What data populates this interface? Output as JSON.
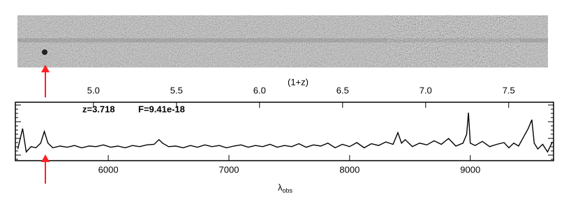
{
  "chart_data": {
    "type": "line",
    "x_label": "λ",
    "x_label_sub": "obs",
    "x2_label": "(1+z)",
    "annotations": [
      "z=3.718",
      "F=9.41e-18"
    ],
    "x": [
      5250,
      5290,
      5320,
      5360,
      5400,
      5440,
      5470,
      5500,
      5540,
      5600,
      5660,
      5720,
      5780,
      5840,
      5900,
      5960,
      6020,
      6080,
      6140,
      6200,
      6260,
      6320,
      6380,
      6420,
      6450,
      6500,
      6560,
      6620,
      6680,
      6740,
      6800,
      6860,
      6920,
      6980,
      7040,
      7100,
      7160,
      7220,
      7280,
      7340,
      7400,
      7460,
      7520,
      7580,
      7640,
      7700,
      7760,
      7820,
      7880,
      7940,
      8000,
      8060,
      8120,
      8180,
      8240,
      8300,
      8360,
      8400,
      8430,
      8460,
      8520,
      8580,
      8640,
      8700,
      8760,
      8820,
      8880,
      8940,
      8970,
      8985,
      9000,
      9040,
      9100,
      9160,
      9220,
      9280,
      9320,
      9360,
      9400,
      9440,
      9480,
      9510,
      9530,
      9560,
      9600,
      9640,
      9680
    ],
    "series": [
      {
        "color": "#000000",
        "values": [
          0.2,
          0.55,
          0.15,
          0.24,
          0.22,
          0.3,
          0.5,
          0.3,
          0.22,
          0.25,
          0.23,
          0.26,
          0.22,
          0.25,
          0.24,
          0.27,
          0.23,
          0.25,
          0.22,
          0.26,
          0.24,
          0.27,
          0.28,
          0.36,
          0.3,
          0.24,
          0.25,
          0.22,
          0.26,
          0.23,
          0.27,
          0.24,
          0.26,
          0.22,
          0.25,
          0.27,
          0.23,
          0.26,
          0.24,
          0.28,
          0.23,
          0.26,
          0.24,
          0.29,
          0.23,
          0.27,
          0.25,
          0.3,
          0.22,
          0.28,
          0.24,
          0.31,
          0.22,
          0.29,
          0.26,
          0.32,
          0.28,
          0.48,
          0.3,
          0.36,
          0.24,
          0.3,
          0.27,
          0.34,
          0.28,
          0.38,
          0.25,
          0.3,
          0.45,
          0.82,
          0.3,
          0.26,
          0.33,
          0.24,
          0.28,
          0.31,
          0.22,
          0.3,
          0.25,
          0.4,
          0.55,
          0.7,
          0.3,
          0.2,
          0.28,
          0.15,
          0.32
        ]
      }
    ],
    "xlim": [
      5230,
      9690
    ],
    "xticks": [
      6000,
      7000,
      8000,
      9000
    ],
    "x2lim": [
      4.53,
      7.77
    ],
    "x2ticks": [
      {
        "value": 5,
        "label": "5.0"
      },
      {
        "value": 5.5,
        "label": "5.5"
      },
      {
        "value": 6,
        "label": "6.0"
      },
      {
        "value": 6.5,
        "label": "6.5"
      },
      {
        "value": 7,
        "label": "7.0"
      },
      {
        "value": 7.5,
        "label": "7.5"
      }
    ],
    "ylim": [
      0,
      1
    ],
    "annotation_color": "#ff2020"
  }
}
